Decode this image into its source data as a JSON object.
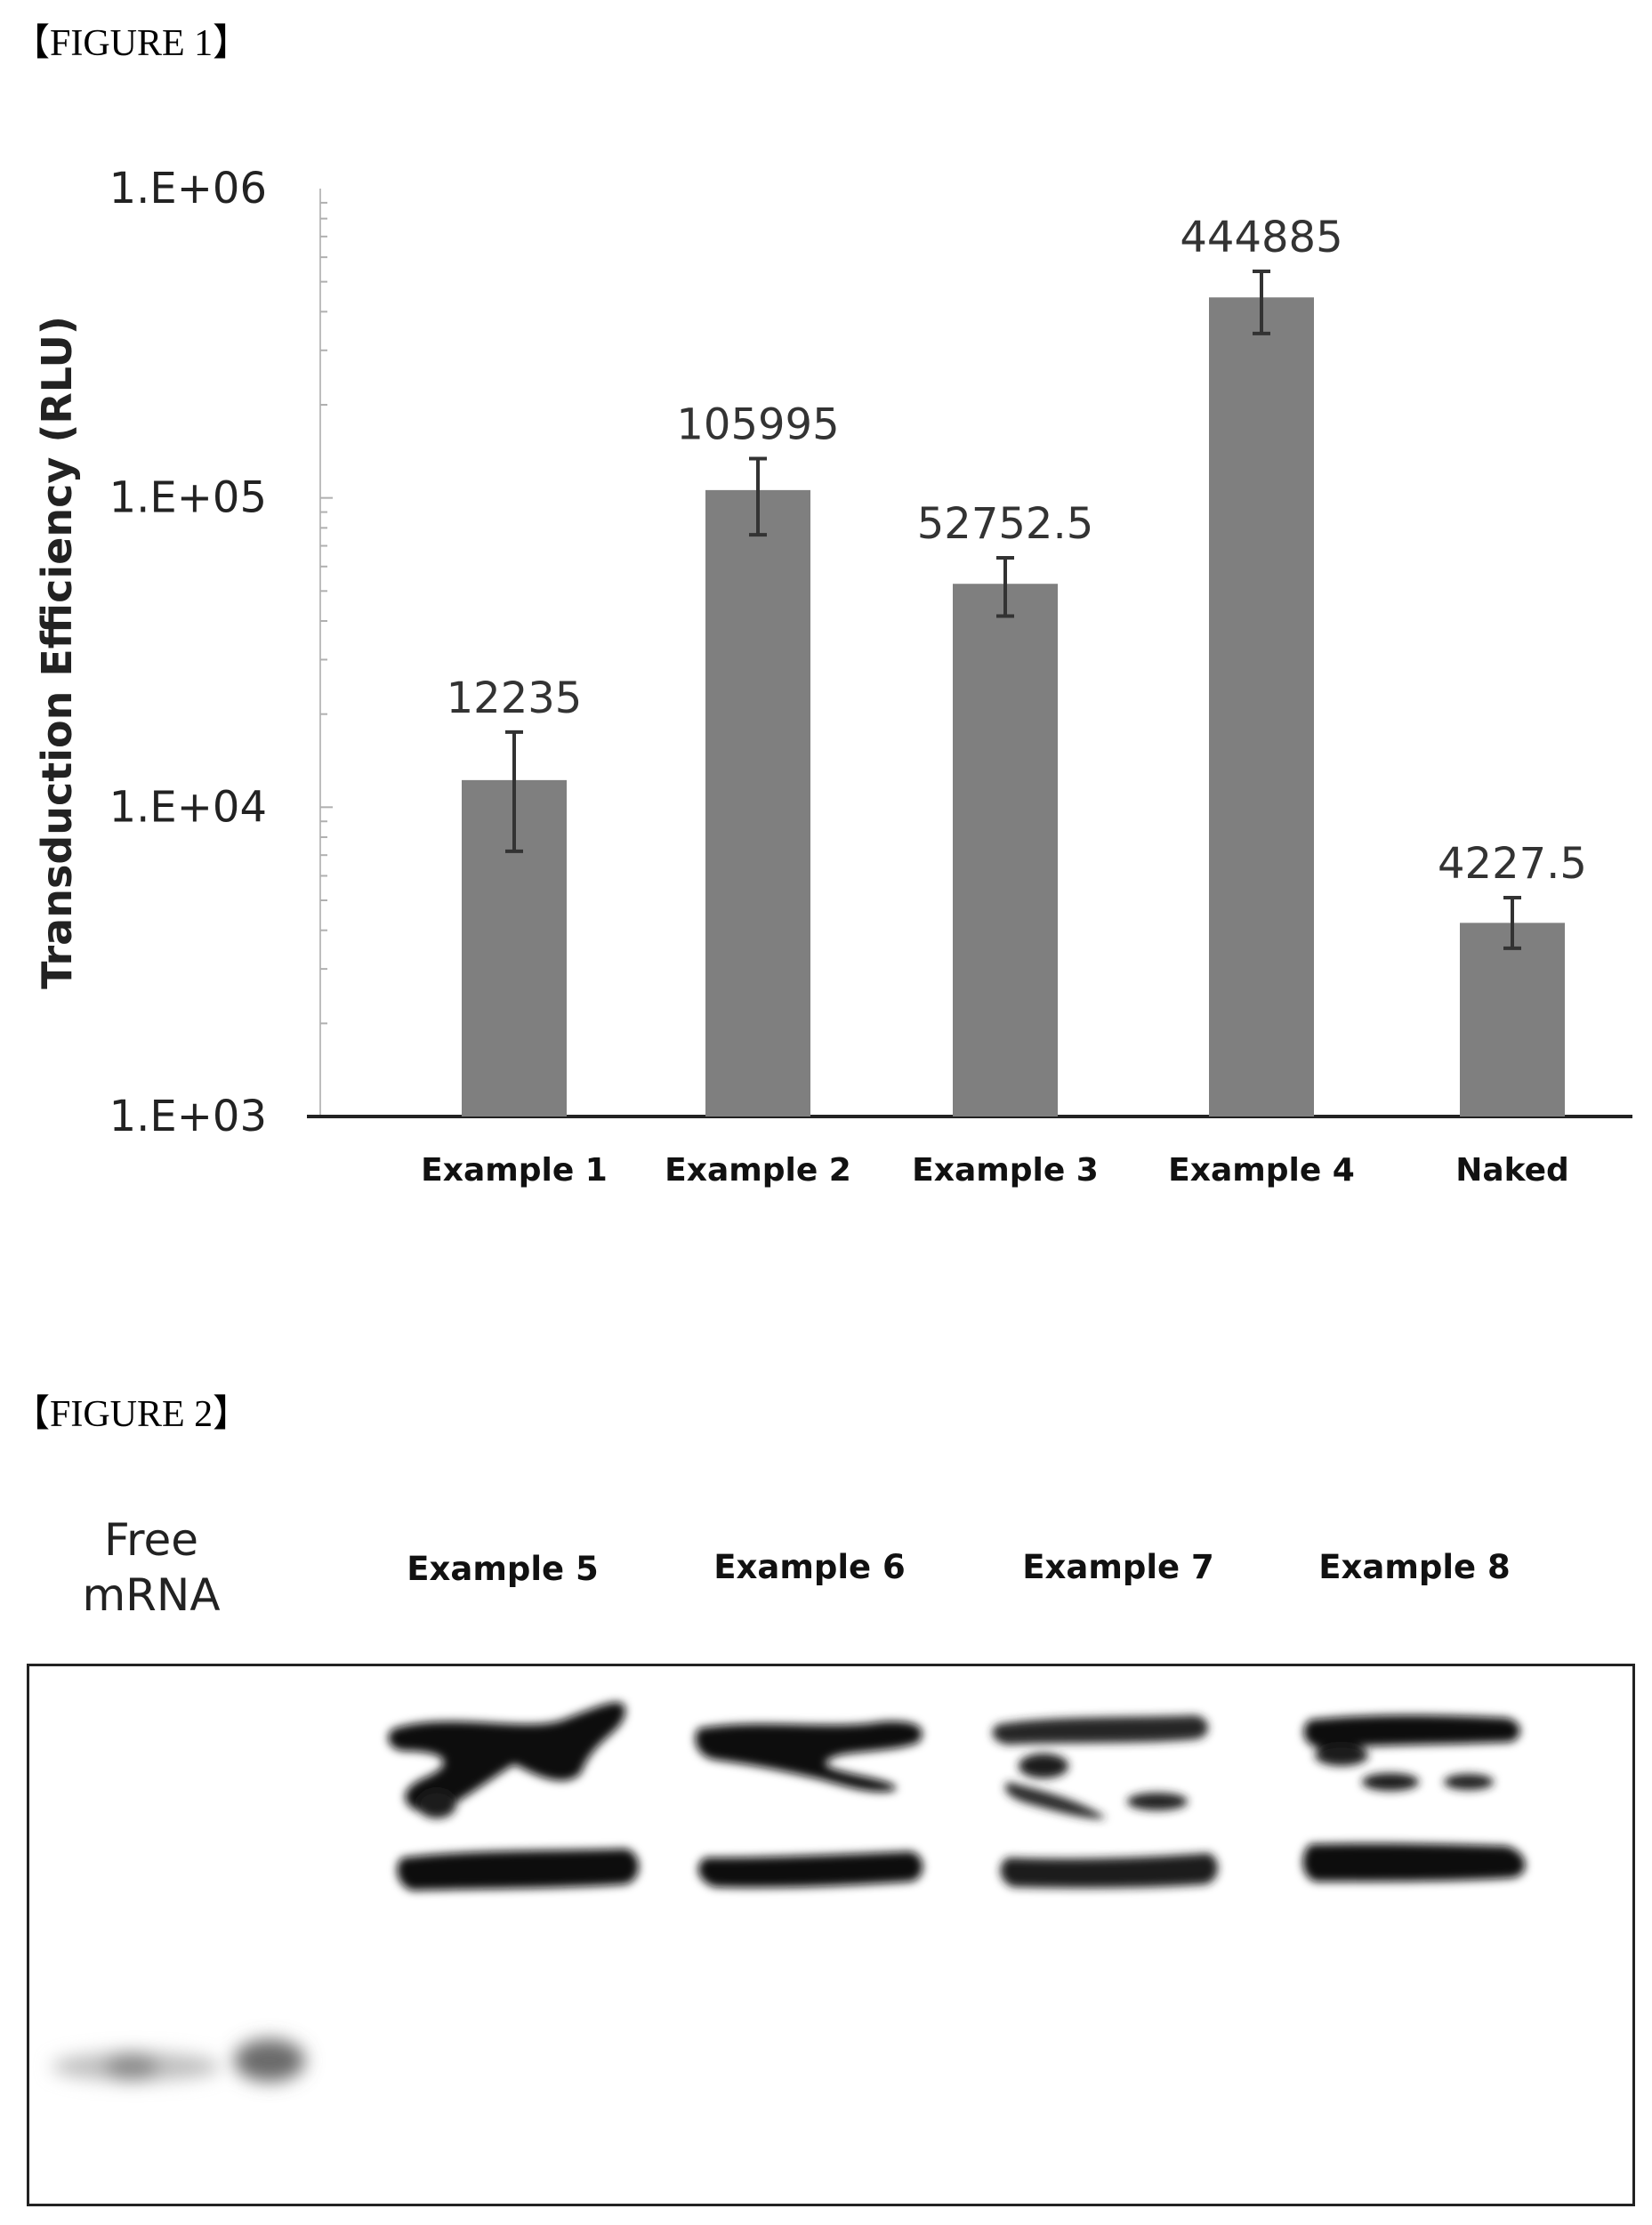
{
  "figure1": {
    "label": "【FIGURE 1】",
    "chart_data": {
      "type": "bar",
      "categories": [
        "Example 1",
        "Example 2",
        "Example 3",
        "Example 4",
        "Naked"
      ],
      "values": [
        12235,
        105995,
        52752.5,
        444885,
        4227.5
      ],
      "value_labels": [
        "12235",
        "105995",
        "52752.5",
        "444885",
        "4227.5"
      ],
      "error_bars": [
        [
          7200,
          17500
        ],
        [
          76000,
          134000
        ],
        [
          41500,
          64000
        ],
        [
          340000,
          540000
        ],
        [
          3500,
          5100
        ]
      ],
      "ylabel": "Transduction Efficiency (RLU)",
      "xlabel": "",
      "y_scale": "log",
      "ylim": [
        1000,
        1000000
      ],
      "y_ticks": [
        "1.E+03",
        "1.E+04",
        "1.E+05",
        "1.E+06"
      ],
      "grid": false,
      "bar_color": "#7f7f7f"
    }
  },
  "figure2": {
    "label": "【FIGURE 2】",
    "lane_labels": [
      "Example 5",
      "Example 6",
      "Example 7",
      "Example 8"
    ],
    "free_label_lines": [
      "Free",
      "mRNA"
    ]
  }
}
